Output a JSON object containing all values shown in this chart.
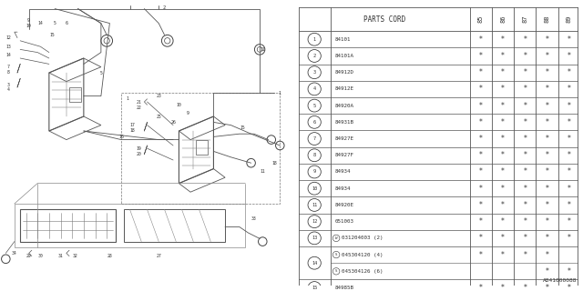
{
  "footnote": "A841000088",
  "rows": [
    {
      "num": "1",
      "part": "84101",
      "w_prefix": false,
      "s_prefix": false,
      "cols": [
        1,
        1,
        1,
        1,
        1
      ]
    },
    {
      "num": "2",
      "part": "84101A",
      "w_prefix": false,
      "s_prefix": false,
      "cols": [
        1,
        1,
        1,
        1,
        1
      ]
    },
    {
      "num": "3",
      "part": "84912D",
      "w_prefix": false,
      "s_prefix": false,
      "cols": [
        1,
        1,
        1,
        1,
        1
      ]
    },
    {
      "num": "4",
      "part": "84912E",
      "w_prefix": false,
      "s_prefix": false,
      "cols": [
        1,
        1,
        1,
        1,
        1
      ]
    },
    {
      "num": "5",
      "part": "84920A",
      "w_prefix": false,
      "s_prefix": false,
      "cols": [
        1,
        1,
        1,
        1,
        1
      ]
    },
    {
      "num": "6",
      "part": "84931B",
      "w_prefix": false,
      "s_prefix": false,
      "cols": [
        1,
        1,
        1,
        1,
        1
      ]
    },
    {
      "num": "7",
      "part": "84927E",
      "w_prefix": false,
      "s_prefix": false,
      "cols": [
        1,
        1,
        1,
        1,
        1
      ]
    },
    {
      "num": "8",
      "part": "84927F",
      "w_prefix": false,
      "s_prefix": false,
      "cols": [
        1,
        1,
        1,
        1,
        1
      ]
    },
    {
      "num": "9",
      "part": "84934",
      "w_prefix": false,
      "s_prefix": false,
      "cols": [
        1,
        1,
        1,
        1,
        1
      ]
    },
    {
      "num": "10",
      "part": "84934",
      "w_prefix": false,
      "s_prefix": false,
      "cols": [
        1,
        1,
        1,
        1,
        1
      ]
    },
    {
      "num": "11",
      "part": "84920E",
      "w_prefix": false,
      "s_prefix": false,
      "cols": [
        1,
        1,
        1,
        1,
        1
      ]
    },
    {
      "num": "12",
      "part": "051003",
      "w_prefix": false,
      "s_prefix": false,
      "cols": [
        1,
        1,
        1,
        1,
        1
      ]
    },
    {
      "num": "13",
      "part": "031204003 (2)",
      "w_prefix": true,
      "s_prefix": false,
      "cols": [
        1,
        1,
        1,
        1,
        1
      ]
    },
    {
      "num": "14",
      "part": "045304120 (4)",
      "w_prefix": false,
      "s_prefix": true,
      "cols": [
        1,
        1,
        1,
        1,
        0
      ],
      "part2": "045304126 (6)",
      "cols2": [
        0,
        0,
        0,
        1,
        1
      ]
    },
    {
      "num": "15",
      "part": "84985B",
      "w_prefix": false,
      "s_prefix": false,
      "cols": [
        1,
        1,
        1,
        1,
        1
      ]
    }
  ],
  "year_labels": [
    "85",
    "86",
    "87",
    "88",
    "89"
  ],
  "lc": "#777777",
  "tc": "#333333",
  "star_color": "#333333"
}
